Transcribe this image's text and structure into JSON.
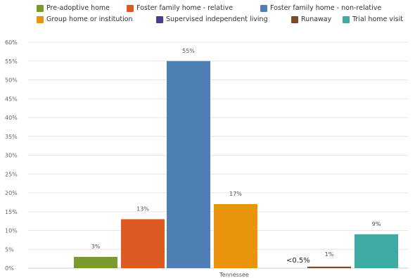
{
  "chart_data": {
    "type": "bar",
    "categories": [
      "Tennessee"
    ],
    "series": [
      {
        "name": "Pre-adoptive home",
        "value": 3,
        "label": "3%",
        "color": "#7a9a2e"
      },
      {
        "name": "Foster family home - relative",
        "value": 13,
        "label": "13%",
        "color": "#dd5a23"
      },
      {
        "name": "Foster family home - non-relative",
        "value": 55,
        "label": "55%",
        "color": "#4e80b5"
      },
      {
        "name": "Group home or institution",
        "value": 17,
        "label": "17%",
        "color": "#e8940c"
      },
      {
        "name": "Supervised independent living",
        "value": 0,
        "label": "",
        "color": "#4b3d8c"
      },
      {
        "name": "Runaway",
        "value": 0.4,
        "label": "<0.5%",
        "color": "#7a4b26"
      },
      {
        "name": "Trial home visit",
        "value": 9,
        "label": "9%",
        "color": "#3fa9a3"
      }
    ],
    "extra_label": {
      "text": "1%"
    },
    "yticks": [
      "0%",
      "5%",
      "10%",
      "15%",
      "20%",
      "25%",
      "30%",
      "35%",
      "40%",
      "45%",
      "50%",
      "55%",
      "60%"
    ],
    "ylim": [
      0,
      60
    ],
    "grid": true,
    "legend_position": "top",
    "xlabel": "",
    "ylabel": ""
  }
}
